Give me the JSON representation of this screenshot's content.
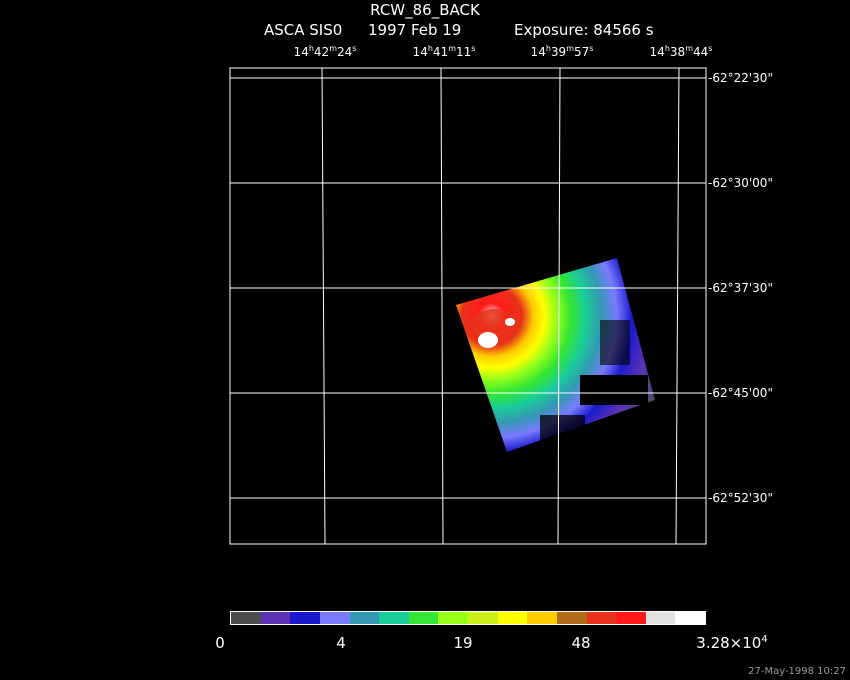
{
  "header": {
    "target": "RCW_86_BACK",
    "instrument": "ASCA SIS0",
    "date": "1997 Feb 19",
    "exposure": "Exposure: 84566 s"
  },
  "ra_labels": [
    {
      "h": "14",
      "m": "42",
      "s": "24"
    },
    {
      "h": "14",
      "m": "41",
      "s": "11"
    },
    {
      "h": "14",
      "m": "39",
      "s": "57"
    },
    {
      "h": "14",
      "m": "38",
      "s": "44"
    }
  ],
  "dec_labels": [
    "-62°22'30\"",
    "-62°30'00\"",
    "-62°37'30\"",
    "-62°45'00\"",
    "-62°52'30\""
  ],
  "colorbar": {
    "colors": [
      "#4d4d4d",
      "#5c33b5",
      "#1a1acc",
      "#7a7aff",
      "#3399b3",
      "#1acc99",
      "#33e633",
      "#99ff1a",
      "#ccf01a",
      "#ffff00",
      "#ffcc00",
      "#b36b1a",
      "#e6331a",
      "#ff1a1a",
      "#e0e0e0",
      "#ffffff"
    ],
    "labels": [
      "0",
      "4",
      "19",
      "48"
    ],
    "max_mantissa": "3.28×10",
    "max_exp": "4"
  },
  "stamp": "27-May-1998 10:27"
}
